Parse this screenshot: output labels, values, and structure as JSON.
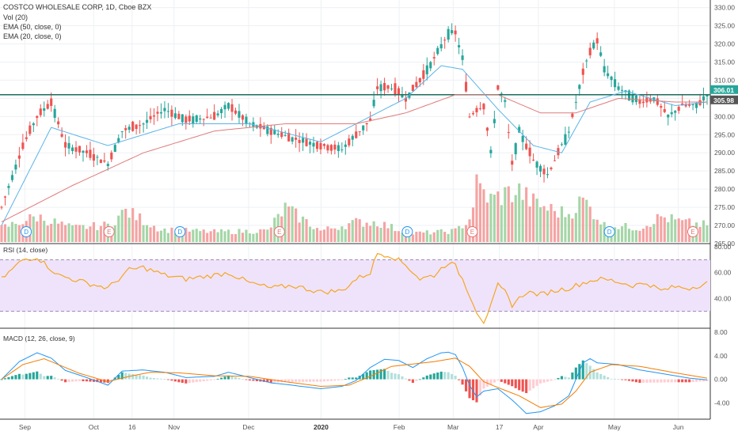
{
  "chart_data": {
    "type": "candlestick",
    "symbol_title": "COSTCO WHOLESALE CORP, 1D, Cboe BZX",
    "indicator_labels": [
      "Vol (20)",
      "EMA (50, close, 0)",
      "EMA (20, close, 0)"
    ],
    "price_axis": {
      "ylim": [
        265,
        331
      ],
      "ticks": [
        "330.00",
        "325.00",
        "320.00",
        "315.00",
        "310.00",
        "305.00",
        "300.00",
        "295.00",
        "290.00",
        "285.00",
        "280.00",
        "275.00",
        "270.00",
        "265.00"
      ]
    },
    "last_price_label": "306.01",
    "prev_close_label": "305.98",
    "support_line_value": 306.0,
    "x_ticks": [
      "Sep",
      "Oct",
      "16",
      "Nov",
      "Dec",
      "2020",
      "Feb",
      "Mar",
      "17",
      "Apr",
      "May",
      "Jun"
    ],
    "events": [
      {
        "label": "D",
        "pos": 0.03
      },
      {
        "label": "E",
        "pos": 0.155
      },
      {
        "label": "D",
        "pos": 0.262
      },
      {
        "label": "E",
        "pos": 0.412
      },
      {
        "label": "D",
        "pos": 0.605
      },
      {
        "label": "E",
        "pos": 0.703
      },
      {
        "label": "D",
        "pos": 0.91
      },
      {
        "label": "E",
        "pos": 1.0
      }
    ],
    "price_keypoints": [
      [
        0,
        275
      ],
      [
        6,
        292
      ],
      [
        10,
        300
      ],
      [
        14,
        304
      ],
      [
        18,
        292
      ],
      [
        24,
        290
      ],
      [
        30,
        287
      ],
      [
        34,
        296
      ],
      [
        40,
        298
      ],
      [
        46,
        302
      ],
      [
        52,
        299
      ],
      [
        60,
        300
      ],
      [
        64,
        303
      ],
      [
        70,
        298
      ],
      [
        76,
        296
      ],
      [
        82,
        294
      ],
      [
        90,
        292
      ],
      [
        96,
        291
      ],
      [
        100,
        295
      ],
      [
        104,
        299
      ],
      [
        106,
        308
      ],
      [
        110,
        308
      ],
      [
        114,
        305
      ],
      [
        118,
        310
      ],
      [
        122,
        316
      ],
      [
        126,
        323
      ],
      [
        128,
        323
      ],
      [
        130,
        316
      ],
      [
        132,
        300
      ],
      [
        134,
        302
      ],
      [
        136,
        303
      ],
      [
        138,
        290
      ],
      [
        140,
        308
      ],
      [
        142,
        304
      ],
      [
        144,
        287
      ],
      [
        146,
        296
      ],
      [
        150,
        288
      ],
      [
        154,
        284
      ],
      [
        158,
        292
      ],
      [
        160,
        296
      ],
      [
        164,
        312
      ],
      [
        166,
        318
      ],
      [
        168,
        321
      ],
      [
        170,
        313
      ],
      [
        174,
        308
      ],
      [
        180,
        304
      ],
      [
        184,
        305
      ],
      [
        188,
        300
      ],
      [
        192,
        303
      ],
      [
        196,
        303
      ],
      [
        199,
        306
      ]
    ],
    "ema20_keypoints": [
      [
        0,
        270
      ],
      [
        14,
        297
      ],
      [
        30,
        292
      ],
      [
        50,
        298
      ],
      [
        70,
        298
      ],
      [
        90,
        293
      ],
      [
        104,
        300
      ],
      [
        114,
        305
      ],
      [
        124,
        314
      ],
      [
        130,
        313
      ],
      [
        140,
        302
      ],
      [
        150,
        292
      ],
      [
        158,
        290
      ],
      [
        166,
        304
      ],
      [
        176,
        307
      ],
      [
        190,
        303
      ],
      [
        199,
        304
      ]
    ],
    "ema50_keypoints": [
      [
        0,
        271
      ],
      [
        20,
        281
      ],
      [
        40,
        290
      ],
      [
        60,
        296
      ],
      [
        80,
        298
      ],
      [
        100,
        298
      ],
      [
        114,
        301
      ],
      [
        128,
        306
      ],
      [
        140,
        306
      ],
      [
        152,
        301
      ],
      [
        162,
        301
      ],
      [
        174,
        305
      ],
      [
        190,
        304
      ],
      [
        199,
        304
      ]
    ],
    "rsi": {
      "label": "RSI (14, close)",
      "ylim": [
        20,
        80
      ],
      "band": [
        30,
        70
      ],
      "ticks": [
        "80.00",
        "60.00",
        "40.00"
      ],
      "keypoints": [
        [
          0,
          55
        ],
        [
          6,
          70
        ],
        [
          10,
          72
        ],
        [
          16,
          58
        ],
        [
          24,
          52
        ],
        [
          30,
          48
        ],
        [
          36,
          62
        ],
        [
          40,
          64
        ],
        [
          46,
          58
        ],
        [
          52,
          55
        ],
        [
          60,
          58
        ],
        [
          64,
          60
        ],
        [
          70,
          52
        ],
        [
          76,
          48
        ],
        [
          82,
          50
        ],
        [
          90,
          45
        ],
        [
          96,
          46
        ],
        [
          100,
          55
        ],
        [
          104,
          60
        ],
        [
          106,
          75
        ],
        [
          110,
          73
        ],
        [
          114,
          66
        ],
        [
          118,
          55
        ],
        [
          122,
          58
        ],
        [
          126,
          68
        ],
        [
          128,
          65
        ],
        [
          130,
          55
        ],
        [
          132,
          43
        ],
        [
          134,
          30
        ],
        [
          136,
          22
        ],
        [
          138,
          34
        ],
        [
          140,
          50
        ],
        [
          142,
          45
        ],
        [
          144,
          35
        ],
        [
          148,
          45
        ],
        [
          152,
          43
        ],
        [
          156,
          46
        ],
        [
          160,
          48
        ],
        [
          164,
          52
        ],
        [
          168,
          55
        ],
        [
          172,
          54
        ],
        [
          178,
          50
        ],
        [
          182,
          52
        ],
        [
          186,
          46
        ],
        [
          190,
          49
        ],
        [
          194,
          48
        ],
        [
          199,
          52
        ]
      ]
    },
    "macd": {
      "label": "MACD (12, 26, close, 9)",
      "ylim": [
        -6.5,
        8
      ],
      "ticks": [
        "8.00",
        "4.00",
        "0.00",
        "-4.00"
      ],
      "macd_keypoints": [
        [
          0,
          0
        ],
        [
          5,
          3
        ],
        [
          10,
          4.5
        ],
        [
          14,
          3.6
        ],
        [
          18,
          1.5
        ],
        [
          24,
          0.3
        ],
        [
          30,
          -1
        ],
        [
          34,
          1.4
        ],
        [
          40,
          1.6
        ],
        [
          46,
          1.2
        ],
        [
          52,
          0.3
        ],
        [
          60,
          0.5
        ],
        [
          64,
          1.2
        ],
        [
          70,
          0.3
        ],
        [
          76,
          -0.6
        ],
        [
          82,
          -1
        ],
        [
          90,
          -1.6
        ],
        [
          96,
          -1.2
        ],
        [
          100,
          -0.2
        ],
        [
          104,
          2
        ],
        [
          108,
          3.4
        ],
        [
          112,
          3.2
        ],
        [
          116,
          2
        ],
        [
          120,
          3.5
        ],
        [
          124,
          4.5
        ],
        [
          126,
          4.6
        ],
        [
          128,
          4.2
        ],
        [
          130,
          2
        ],
        [
          132,
          -1
        ],
        [
          134,
          -3
        ],
        [
          136,
          -2
        ],
        [
          140,
          -1.6
        ],
        [
          144,
          -3.5
        ],
        [
          148,
          -5.8
        ],
        [
          152,
          -5.5
        ],
        [
          156,
          -4.5
        ],
        [
          160,
          -2.8
        ],
        [
          164,
          2.8
        ],
        [
          166,
          3.5
        ],
        [
          168,
          2.8
        ],
        [
          174,
          2.5
        ],
        [
          180,
          1.6
        ],
        [
          188,
          0.8
        ],
        [
          194,
          0.2
        ],
        [
          199,
          -0.1
        ]
      ],
      "signal_keypoints": [
        [
          0,
          0
        ],
        [
          6,
          2.5
        ],
        [
          12,
          3.5
        ],
        [
          16,
          2.5
        ],
        [
          22,
          1
        ],
        [
          30,
          -0.4
        ],
        [
          36,
          0.5
        ],
        [
          42,
          1.2
        ],
        [
          50,
          1.1
        ],
        [
          60,
          0.6
        ],
        [
          70,
          0.5
        ],
        [
          80,
          -0.4
        ],
        [
          90,
          -1.2
        ],
        [
          98,
          -1
        ],
        [
          104,
          0.5
        ],
        [
          110,
          2.2
        ],
        [
          116,
          2.6
        ],
        [
          122,
          3
        ],
        [
          128,
          3.6
        ],
        [
          132,
          2.2
        ],
        [
          136,
          -0.4
        ],
        [
          140,
          -1.4
        ],
        [
          146,
          -2.8
        ],
        [
          152,
          -4.8
        ],
        [
          158,
          -4.2
        ],
        [
          162,
          -2
        ],
        [
          166,
          1.2
        ],
        [
          172,
          2.5
        ],
        [
          180,
          2.2
        ],
        [
          190,
          1.1
        ],
        [
          199,
          0.2
        ]
      ]
    },
    "volume_keypoints": [
      [
        0,
        0.25
      ],
      [
        10,
        0.45
      ],
      [
        20,
        0.25
      ],
      [
        30,
        0.3
      ],
      [
        35,
        0.55
      ],
      [
        45,
        0.22
      ],
      [
        60,
        0.18
      ],
      [
        75,
        0.2
      ],
      [
        80,
        0.6
      ],
      [
        90,
        0.2
      ],
      [
        100,
        0.35
      ],
      [
        106,
        0.35
      ],
      [
        115,
        0.15
      ],
      [
        124,
        0.18
      ],
      [
        128,
        0.2
      ],
      [
        132,
        0.4
      ],
      [
        134,
        1.0
      ],
      [
        138,
        0.75
      ],
      [
        142,
        0.85
      ],
      [
        146,
        0.9
      ],
      [
        150,
        0.7
      ],
      [
        156,
        0.55
      ],
      [
        160,
        0.5
      ],
      [
        164,
        0.75
      ],
      [
        170,
        0.3
      ],
      [
        180,
        0.25
      ],
      [
        186,
        0.45
      ],
      [
        192,
        0.35
      ],
      [
        199,
        0.3
      ]
    ]
  }
}
